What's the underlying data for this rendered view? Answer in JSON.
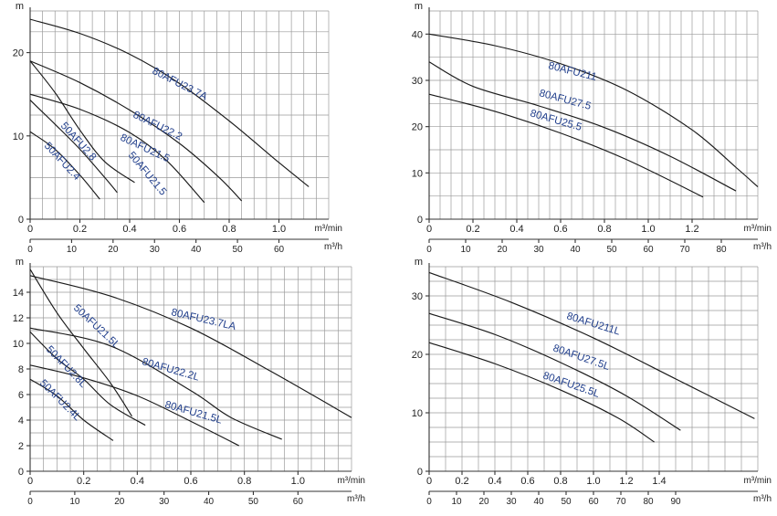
{
  "chart_data": [
    {
      "type": "line",
      "xlabel": "m³/min",
      "x2label": "m³/h",
      "ylabel": "m",
      "xlim": [
        0,
        1.2
      ],
      "ylim": [
        0,
        25
      ],
      "x_ticks": [
        0,
        0.2,
        0.4,
        0.6,
        0.8,
        1.0
      ],
      "x_tick_labels": [
        "0",
        "0.2",
        "0.4",
        "0.6",
        "0.8",
        "1.0"
      ],
      "y_ticks": [
        0,
        10,
        20
      ],
      "x2_ticks": [
        0,
        10,
        20,
        30,
        40,
        50,
        60
      ],
      "grid": true,
      "series": [
        {
          "name": "80AFU23.7A",
          "points": [
            [
              0,
              24
            ],
            [
              0.2,
              22.3
            ],
            [
              0.4,
              19.8
            ],
            [
              0.6,
              16.3
            ],
            [
              0.8,
              11.8
            ],
            [
              1.0,
              6.8
            ],
            [
              1.12,
              3.9
            ]
          ]
        },
        {
          "name": "80AFU22.2",
          "points": [
            [
              0,
              19
            ],
            [
              0.2,
              16.4
            ],
            [
              0.4,
              13.1
            ],
            [
              0.6,
              9.1
            ],
            [
              0.76,
              5.0
            ],
            [
              0.85,
              2.2
            ]
          ]
        },
        {
          "name": "80AFU21.5",
          "points": [
            [
              0,
              15
            ],
            [
              0.2,
              13.2
            ],
            [
              0.4,
              10.4
            ],
            [
              0.55,
              7.0
            ],
            [
              0.7,
              2.0
            ]
          ]
        },
        {
          "name": "50AFU21.5",
          "points": [
            [
              0,
              19
            ],
            [
              0.1,
              15.2
            ],
            [
              0.2,
              10.7
            ],
            [
              0.3,
              6.9
            ],
            [
              0.42,
              4.4
            ]
          ]
        },
        {
          "name": "50AFU2.8",
          "points": [
            [
              0,
              14.3
            ],
            [
              0.1,
              11.4
            ],
            [
              0.2,
              8.4
            ],
            [
              0.3,
              5.0
            ],
            [
              0.35,
              3.2
            ]
          ]
        },
        {
          "name": "50AFU2.4",
          "points": [
            [
              0,
              10.5
            ],
            [
              0.1,
              8.4
            ],
            [
              0.2,
              5.3
            ],
            [
              0.28,
              2.4
            ]
          ]
        }
      ]
    },
    {
      "type": "line",
      "xlabel": "m³/min",
      "x2label": "m³/h",
      "ylabel": "m",
      "xlim": [
        0,
        1.5
      ],
      "ylim": [
        0,
        45
      ],
      "x_ticks": [
        0,
        0.2,
        0.4,
        0.6,
        0.8,
        1.0,
        1.2
      ],
      "x_tick_labels": [
        "0",
        "0.2",
        "0.4",
        "0.6",
        "0.8",
        "1.0",
        "1.2"
      ],
      "y_ticks": [
        0,
        10,
        20,
        30,
        40
      ],
      "x2_ticks": [
        0,
        10,
        20,
        30,
        40,
        50,
        60,
        70,
        80
      ],
      "grid": true,
      "series": [
        {
          "name": "80AFU211",
          "points": [
            [
              0,
              40
            ],
            [
              0.3,
              37.5
            ],
            [
              0.6,
              33.6
            ],
            [
              0.9,
              27.9
            ],
            [
              1.2,
              19.3
            ],
            [
              1.4,
              11.2
            ],
            [
              1.5,
              7.0
            ]
          ]
        },
        {
          "name": "80AFU27.5",
          "points": [
            [
              0,
              34
            ],
            [
              0.2,
              28.7
            ],
            [
              0.5,
              24.5
            ],
            [
              0.8,
              19.8
            ],
            [
              1.1,
              13.6
            ],
            [
              1.4,
              6.1
            ]
          ]
        },
        {
          "name": "80AFU25.5",
          "points": [
            [
              0,
              27
            ],
            [
              0.3,
              23.3
            ],
            [
              0.6,
              18.6
            ],
            [
              0.9,
              12.9
            ],
            [
              1.25,
              4.8
            ]
          ]
        }
      ]
    },
    {
      "type": "line",
      "xlabel": "m³/min",
      "x2label": "m³/h",
      "ylabel": "m",
      "xlim": [
        0,
        1.2
      ],
      "ylim": [
        0,
        16
      ],
      "x_ticks": [
        0,
        0.2,
        0.4,
        0.6,
        0.8,
        1.0
      ],
      "x_tick_labels": [
        "0",
        "0.2",
        "0.4",
        "0.6",
        "0.8",
        "1.0"
      ],
      "y_ticks": [
        0,
        2,
        4,
        6,
        8,
        10,
        12,
        14
      ],
      "x2_ticks": [
        0,
        10,
        20,
        30,
        40,
        50,
        60
      ],
      "grid": true,
      "series": [
        {
          "name": "80AFU23.7LA",
          "points": [
            [
              0,
              15.3
            ],
            [
              0.3,
              13.7
            ],
            [
              0.6,
              11.2
            ],
            [
              0.9,
              7.8
            ],
            [
              1.2,
              4.2
            ]
          ]
        },
        {
          "name": "50AFU21.5L",
          "points": [
            [
              0,
              15.8
            ],
            [
              0.1,
              12.4
            ],
            [
              0.2,
              9.6
            ],
            [
              0.3,
              6.9
            ],
            [
              0.38,
              4.3
            ]
          ]
        },
        {
          "name": "80AFU22.2L",
          "points": [
            [
              0,
              11.2
            ],
            [
              0.3,
              9.8
            ],
            [
              0.6,
              6.3
            ],
            [
              0.75,
              4.2
            ],
            [
              0.94,
              2.5
            ]
          ]
        },
        {
          "name": "80AFU21.5L",
          "points": [
            [
              0,
              8.3
            ],
            [
              0.2,
              7.3
            ],
            [
              0.4,
              5.9
            ],
            [
              0.6,
              3.9
            ],
            [
              0.78,
              2.0
            ]
          ]
        },
        {
          "name": "50AFU2.8L",
          "points": [
            [
              0,
              10.9
            ],
            [
              0.1,
              8.8
            ],
            [
              0.2,
              7.2
            ],
            [
              0.3,
              5.2
            ],
            [
              0.43,
              3.6
            ]
          ]
        },
        {
          "name": "50AFU2.4L",
          "points": [
            [
              0,
              7.2
            ],
            [
              0.1,
              5.9
            ],
            [
              0.2,
              4.0
            ],
            [
              0.31,
              2.4
            ]
          ]
        }
      ]
    },
    {
      "type": "line",
      "xlabel": "m³/min",
      "x2label": "m³/h",
      "ylabel": "m",
      "xlim": [
        0,
        2.0
      ],
      "ylim": [
        0,
        35
      ],
      "x_ticks": [
        0,
        0.2,
        0.4,
        0.6,
        0.8,
        1.0,
        1.2,
        1.4
      ],
      "x_tick_labels": [
        "0",
        "0.2",
        "0.4",
        "0.6",
        "0.8",
        "1.0",
        "1.2",
        "1.4"
      ],
      "y_ticks": [
        0,
        10,
        20,
        30
      ],
      "x2_ticks": [
        0,
        10,
        20,
        30,
        40,
        50,
        60,
        70,
        80,
        90
      ],
      "grid": true,
      "series": [
        {
          "name": "80AFU211L",
          "points": [
            [
              0,
              34
            ],
            [
              0.5,
              28.9
            ],
            [
              1.0,
              22.8
            ],
            [
              1.5,
              15.8
            ],
            [
              1.98,
              9.0
            ]
          ]
        },
        {
          "name": "80AFU27.5L",
          "points": [
            [
              0,
              27
            ],
            [
              0.4,
              23.4
            ],
            [
              0.8,
              18.6
            ],
            [
              1.2,
              12.9
            ],
            [
              1.53,
              7.0
            ]
          ]
        },
        {
          "name": "80AFU25.5L",
          "points": [
            [
              0,
              22
            ],
            [
              0.4,
              18.4
            ],
            [
              0.8,
              13.9
            ],
            [
              1.15,
              9.1
            ],
            [
              1.37,
              5.0
            ]
          ]
        }
      ]
    }
  ]
}
